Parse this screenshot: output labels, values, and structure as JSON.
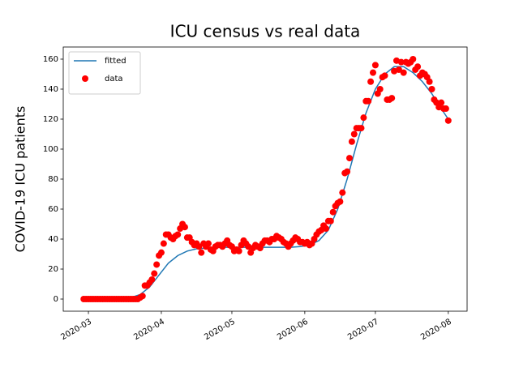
{
  "chart_data": {
    "type": "line",
    "title": "ICU census vs real data",
    "y_label": "COVID-19 ICU patients",
    "xlim": [
      -10.7,
      161
    ],
    "xticks": [
      {
        "value": 0,
        "label": "2020-03"
      },
      {
        "value": 31,
        "label": "2020-04"
      },
      {
        "value": 61,
        "label": "2020-05"
      },
      {
        "value": 92,
        "label": "2020-06"
      },
      {
        "value": 122,
        "label": "2020-07"
      },
      {
        "value": 153,
        "label": "2020-08"
      }
    ],
    "ylim": [
      -8.1,
      168.1
    ],
    "yticks": [
      0,
      20,
      40,
      60,
      80,
      100,
      120,
      140,
      160
    ],
    "legend": "upper left",
    "series": [
      {
        "name": "fitted",
        "type": "line",
        "color": "#1f77b4",
        "x": [
          -2,
          2,
          6,
          10,
          14,
          18,
          22,
          26,
          30,
          34,
          38,
          42,
          46,
          50,
          54,
          58,
          62,
          66,
          70,
          74,
          78,
          82,
          86,
          90,
          94,
          98,
          102,
          106,
          110,
          114,
          118,
          122,
          126,
          130,
          134,
          138,
          142,
          146,
          150,
          153
        ],
        "values": [
          0,
          0,
          0,
          0,
          0.3,
          1,
          3,
          8,
          16,
          24,
          29,
          32,
          33.5,
          34,
          34.5,
          34.5,
          34.5,
          34.5,
          34.5,
          34.5,
          34.5,
          34.5,
          34.5,
          35,
          36,
          39,
          46,
          60,
          80,
          103,
          124,
          140,
          150,
          155,
          155,
          151,
          145,
          137,
          127,
          120
        ]
      },
      {
        "name": "data",
        "type": "scatter",
        "color": "#ff0000",
        "x": [
          -2,
          -1,
          0,
          1,
          2,
          3,
          4,
          5,
          6,
          7,
          8,
          9,
          10,
          11,
          12,
          13,
          14,
          15,
          16,
          17,
          18,
          19,
          20,
          21,
          22,
          23,
          24,
          25,
          26,
          27,
          28,
          29,
          30,
          31,
          32,
          33,
          34,
          35,
          36,
          37,
          38,
          39,
          40,
          41,
          42,
          43,
          44,
          45,
          46,
          47,
          48,
          49,
          50,
          51,
          52,
          53,
          54,
          55,
          56,
          57,
          58,
          59,
          60,
          61,
          62,
          63,
          64,
          65,
          66,
          67,
          68,
          69,
          70,
          71,
          72,
          73,
          74,
          75,
          76,
          77,
          78,
          79,
          80,
          81,
          82,
          83,
          84,
          85,
          86,
          87,
          88,
          89,
          90,
          91,
          92,
          93,
          94,
          95,
          96,
          97,
          98,
          99,
          100,
          101,
          102,
          103,
          104,
          105,
          106,
          107,
          108,
          109,
          110,
          111,
          112,
          113,
          114,
          115,
          116,
          117,
          118,
          119,
          120,
          121,
          122,
          123,
          124,
          125,
          126,
          127,
          128,
          129,
          130,
          131,
          132,
          133,
          134,
          135,
          136,
          137,
          138,
          139,
          140,
          141,
          142,
          143,
          144,
          145,
          146,
          147,
          148,
          149,
          150,
          151,
          152,
          153
        ],
        "values": [
          0,
          0,
          0,
          0,
          0,
          0,
          0,
          0,
          0,
          0,
          0,
          0,
          0,
          0,
          0,
          0,
          0,
          0,
          0,
          0,
          0,
          0,
          0,
          0,
          1,
          2,
          9,
          9,
          11,
          13,
          17,
          23,
          29,
          31,
          37,
          43,
          43,
          41,
          40,
          42,
          43,
          47,
          50,
          48,
          41,
          41,
          38,
          36,
          37,
          35,
          31,
          37,
          35,
          37,
          33,
          32,
          35,
          36,
          36,
          35,
          37,
          39,
          36,
          35,
          32,
          33,
          32,
          36,
          39,
          37,
          35,
          31,
          34,
          36,
          35,
          34,
          37,
          39,
          39,
          38,
          40,
          40,
          42,
          41,
          40,
          38,
          37,
          35,
          37,
          39,
          41,
          40,
          38,
          38,
          37,
          38,
          36,
          37,
          40,
          43,
          45,
          46,
          49,
          47,
          52,
          52,
          58,
          62,
          64,
          65,
          71,
          84,
          85,
          94,
          105,
          110,
          114,
          114,
          114,
          121,
          132,
          132,
          145,
          151,
          156,
          137,
          140,
          148,
          149,
          133,
          133,
          134,
          152,
          159,
          153,
          158,
          151,
          158,
          157,
          158,
          160,
          153,
          155,
          149,
          151,
          150,
          148,
          145,
          140,
          133,
          131,
          128,
          131,
          127,
          127,
          119
        ]
      }
    ]
  }
}
